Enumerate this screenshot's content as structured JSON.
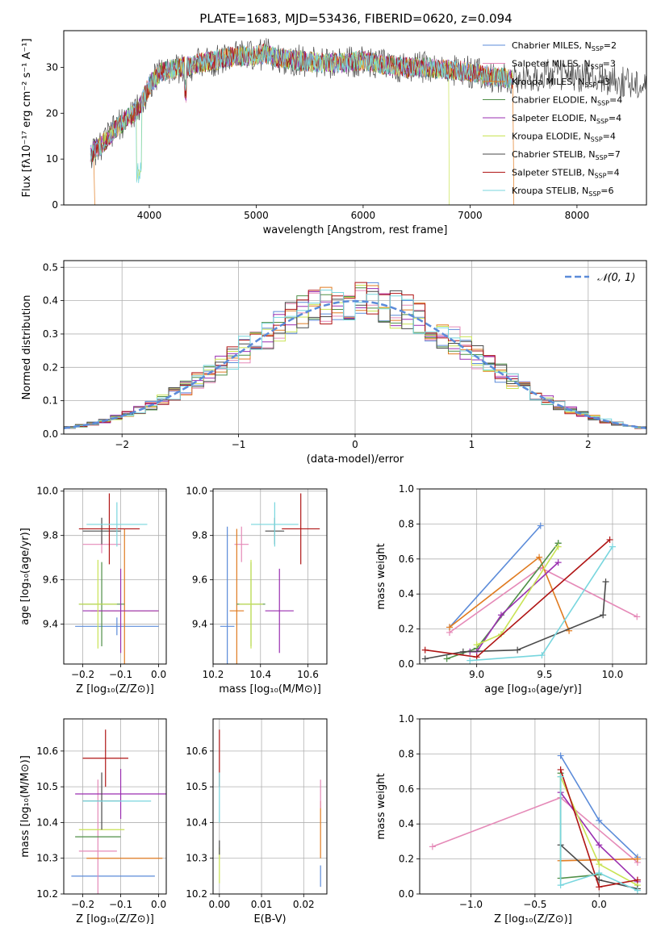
{
  "figure": {
    "title": "PLATE=1683, MJD=53436, FIBERID=0620, z=0.094"
  },
  "models": [
    {
      "name": "Chabrier MILES",
      "nssp": "2",
      "color": "#5b8bd9"
    },
    {
      "name": "Salpeter MILES",
      "nssp": "3",
      "color": "#e58ab8"
    },
    {
      "name": "Kroupa MILES",
      "nssp": "3",
      "color": "#e07b20"
    },
    {
      "name": "Chabrier ELODIE",
      "nssp": "4",
      "color": "#4f8f47"
    },
    {
      "name": "Salpeter ELODIE",
      "nssp": "4",
      "color": "#9a2fb0"
    },
    {
      "name": "Kroupa ELODIE",
      "nssp": "4",
      "color": "#c9e354"
    },
    {
      "name": "Chabrier STELIB",
      "nssp": "7",
      "color": "#4a4a4a"
    },
    {
      "name": "Salpeter STELIB",
      "nssp": "4",
      "color": "#b01515"
    },
    {
      "name": "Kroupa STELIB",
      "nssp": "6",
      "color": "#78d6de"
    }
  ],
  "chart_data": [
    {
      "id": "spectrum",
      "type": "line",
      "xlabel": "wavelength [Angstrom, rest frame]",
      "ylabel": "Flux [fλ10⁻¹⁷ erg cm⁻² s⁻¹ A⁻¹]",
      "xlim": [
        3200,
        8650
      ],
      "ylim": [
        0,
        38
      ],
      "xticks": [
        4000,
        5000,
        6000,
        7000,
        8000
      ],
      "yticks": [
        0,
        10,
        20,
        30
      ],
      "data_x": [
        3450,
        3550,
        3700,
        3800,
        3900,
        4000,
        4100,
        4300,
        4500,
        4700,
        4850,
        5000,
        5100,
        5200,
        5400,
        5600,
        5800,
        6000,
        6200,
        6400,
        6600,
        6800,
        7000,
        7200,
        7400,
        7600,
        7800,
        8000,
        8200,
        8400,
        8650
      ],
      "data_y": [
        11,
        13,
        17,
        19,
        21,
        26,
        29,
        30,
        31,
        32,
        32.5,
        32.5,
        33,
        32,
        31.5,
        31,
        31,
        31.5,
        30.5,
        30,
        30,
        29.5,
        29,
        28,
        27.5,
        28,
        28.5,
        28,
        27.5,
        27,
        26.5
      ],
      "model_end": 7400
    },
    {
      "id": "residuals",
      "type": "histogram",
      "xlabel": "(data-model)/error",
      "ylabel": "Normed distribution",
      "xlim": [
        -2.5,
        2.5
      ],
      "ylim": [
        0,
        0.52
      ],
      "xticks": [
        -2,
        -1,
        0,
        1,
        2
      ],
      "yticks": [
        0.0,
        0.1,
        0.2,
        0.3,
        0.4,
        0.5
      ],
      "bin_width": 0.1,
      "legend": "𝒩(0, 1)",
      "gaussian": {
        "mu": 0,
        "sigma": 1
      }
    },
    {
      "id": "z_age",
      "type": "errorbar",
      "xlabel": "Z [log₁₀(Z/Z⊙)]",
      "ylabel": "age  [log₁₀(age/yr)]",
      "xlim": [
        -0.25,
        0.02
      ],
      "ylim": [
        9.22,
        10.01
      ],
      "xticks": [
        -0.2,
        -0.1,
        0.0
      ],
      "yticks": [
        9.4,
        9.6,
        9.8,
        10.0
      ],
      "points": [
        {
          "x": -0.11,
          "xerr": 0.11,
          "y": 9.39,
          "yerr": 0.04,
          "c": 0
        },
        {
          "x": -0.15,
          "xerr": 0.05,
          "y": 9.76,
          "yerr": 0.04,
          "c": 1
        },
        {
          "x": -0.09,
          "xerr": 0.09,
          "y": 9.46,
          "yerr": 0.37,
          "c": 2
        },
        {
          "x": -0.15,
          "xerr": 0.06,
          "y": 9.49,
          "yerr": 0.19,
          "c": 3
        },
        {
          "x": -0.1,
          "xerr": 0.1,
          "y": 9.46,
          "yerr": 0.19,
          "c": 4
        },
        {
          "x": -0.16,
          "xerr": 0.05,
          "y": 9.49,
          "yerr": 0.2,
          "c": 5
        },
        {
          "x": -0.15,
          "xerr": 0.05,
          "y": 9.82,
          "yerr": 0.06,
          "c": 6
        },
        {
          "x": -0.13,
          "xerr": 0.08,
          "y": 9.83,
          "yerr": 0.16,
          "c": 7
        },
        {
          "x": -0.11,
          "xerr": 0.08,
          "y": 9.85,
          "yerr": 0.1,
          "c": 8
        }
      ]
    },
    {
      "id": "mass_age",
      "type": "errorbar",
      "xlabel": "mass [log₁₀(M/M⊙)]",
      "ylabel": "",
      "xlim": [
        10.2,
        10.68
      ],
      "ylim": [
        9.22,
        10.01
      ],
      "xticks": [
        10.2,
        10.4,
        10.6
      ],
      "yticks": [
        9.4,
        9.6,
        9.8,
        10.0
      ],
      "points": [
        {
          "x": 10.26,
          "xerr": 0.03,
          "y": 9.39,
          "yerr": 0.45,
          "c": 0
        },
        {
          "x": 10.32,
          "xerr": 0.03,
          "y": 9.76,
          "yerr": 0.08,
          "c": 1
        },
        {
          "x": 10.3,
          "xerr": 0.03,
          "y": 9.46,
          "yerr": 0.37,
          "c": 2
        },
        {
          "x": 10.36,
          "xerr": 0.06,
          "y": 9.49,
          "yerr": 0.19,
          "c": 3
        },
        {
          "x": 10.48,
          "xerr": 0.06,
          "y": 9.46,
          "yerr": 0.19,
          "c": 4
        },
        {
          "x": 10.36,
          "xerr": 0.05,
          "y": 9.49,
          "yerr": 0.2,
          "c": 5
        },
        {
          "x": 10.46,
          "xerr": 0.04,
          "y": 9.82,
          "yerr": 0.06,
          "c": 6
        },
        {
          "x": 10.57,
          "xerr": 0.08,
          "y": 9.83,
          "yerr": 0.16,
          "c": 7
        },
        {
          "x": 10.46,
          "xerr": 0.1,
          "y": 9.85,
          "yerr": 0.1,
          "c": 8
        }
      ]
    },
    {
      "id": "age_weight",
      "type": "line",
      "xlabel": "age  [log₁₀(age/yr)]",
      "ylabel": "mass weight",
      "xlim": [
        8.58,
        10.25
      ],
      "ylim": [
        0,
        1
      ],
      "xticks": [
        9.0,
        9.5,
        10.0
      ],
      "yticks": [
        0.0,
        0.2,
        0.4,
        0.6,
        0.8,
        1.0
      ],
      "series": [
        {
          "c": 0,
          "x": [
            8.8,
            9.47
          ],
          "y": [
            0.21,
            0.79
          ]
        },
        {
          "c": 1,
          "x": [
            8.8,
            9.47,
            10.18
          ],
          "y": [
            0.18,
            0.55,
            0.27
          ]
        },
        {
          "c": 2,
          "x": [
            8.8,
            9.46,
            9.68
          ],
          "y": [
            0.21,
            0.61,
            0.19
          ]
        },
        {
          "c": 3,
          "x": [
            8.78,
            9.0,
            9.6,
            9.6
          ],
          "y": [
            0.03,
            0.09,
            0.69,
            0.69
          ]
        },
        {
          "c": 4,
          "x": [
            8.95,
            9.0,
            9.18,
            9.6
          ],
          "y": [
            0.07,
            0.07,
            0.28,
            0.58
          ]
        },
        {
          "c": 5,
          "x": [
            9.0,
            9.18,
            9.6
          ],
          "y": [
            0.11,
            0.17,
            0.67
          ]
        },
        {
          "c": 6,
          "x": [
            8.62,
            8.9,
            9.3,
            9.93,
            9.95
          ],
          "y": [
            0.03,
            0.07,
            0.08,
            0.28,
            0.47
          ]
        },
        {
          "c": 7,
          "x": [
            8.62,
            9.0,
            9.98
          ],
          "y": [
            0.08,
            0.04,
            0.71
          ]
        },
        {
          "c": 8,
          "x": [
            8.95,
            9.48,
            10.0
          ],
          "y": [
            0.02,
            0.05,
            0.67
          ]
        }
      ]
    },
    {
      "id": "z_mass",
      "type": "errorbar",
      "xlabel": "Z [log₁₀(Z/Z⊙)]",
      "ylabel": "mass [log₁₀(M/M⊙)]",
      "xlim": [
        -0.25,
        0.02
      ],
      "ylim": [
        10.2,
        10.69
      ],
      "xticks": [
        -0.2,
        -0.1,
        0.0
      ],
      "yticks": [
        10.2,
        10.3,
        10.4,
        10.5,
        10.6
      ],
      "points": [
        {
          "x": -0.12,
          "xerr": 0.11,
          "y": 10.25,
          "yerr": 0.0,
          "c": 0
        },
        {
          "x": -0.16,
          "xerr": 0.05,
          "y": 10.32,
          "yerr": 0.2,
          "c": 1
        },
        {
          "x": -0.09,
          "xerr": 0.1,
          "y": 10.3,
          "yerr": 0.0,
          "c": 2
        },
        {
          "x": -0.16,
          "xerr": 0.06,
          "y": 10.36,
          "yerr": 0.0,
          "c": 3
        },
        {
          "x": -0.1,
          "xerr": 0.12,
          "y": 10.48,
          "yerr": 0.07,
          "c": 4
        },
        {
          "x": -0.15,
          "xerr": 0.06,
          "y": 10.38,
          "yerr": 0.0,
          "c": 5
        },
        {
          "x": -0.15,
          "xerr": 0.05,
          "y": 10.46,
          "yerr": 0.08,
          "c": 6
        },
        {
          "x": -0.14,
          "xerr": 0.06,
          "y": 10.58,
          "yerr": 0.08,
          "c": 7
        },
        {
          "x": -0.11,
          "xerr": 0.09,
          "y": 10.46,
          "yerr": 0.0,
          "c": 8
        }
      ]
    },
    {
      "id": "ebv_mass",
      "type": "errorbar",
      "xlabel": "E(B-V)",
      "ylabel": "",
      "xlim": [
        -0.0015,
        0.0255
      ],
      "ylim": [
        10.2,
        10.69
      ],
      "xticks": [
        0.0,
        0.01,
        0.02
      ],
      "yticks": [
        10.2,
        10.3,
        10.4,
        10.5,
        10.6
      ],
      "points": [
        {
          "x": 0.0,
          "xerr": 0.0,
          "y": 10.28,
          "yerr": 0.05,
          "c": 5
        },
        {
          "x": 0.0,
          "xerr": 0.0,
          "y": 10.58,
          "yerr": 0.08,
          "c": 7
        },
        {
          "x": 0.0,
          "xerr": 0.0,
          "y": 10.47,
          "yerr": 0.07,
          "c": 8
        },
        {
          "x": 0.0,
          "xerr": 0.0,
          "y": 10.33,
          "yerr": 0.02,
          "c": 6
        },
        {
          "x": 0.024,
          "xerr": 0.0,
          "y": 10.38,
          "yerr": 0.08,
          "c": 2
        },
        {
          "x": 0.024,
          "xerr": 0.0,
          "y": 10.48,
          "yerr": 0.04,
          "c": 1
        },
        {
          "x": 0.024,
          "xerr": 0.0,
          "y": 10.25,
          "yerr": 0.03,
          "c": 0
        }
      ]
    },
    {
      "id": "z_weight",
      "type": "line",
      "xlabel": "Z [log₁₀(Z/Z⊙)]",
      "ylabel": "mass weight",
      "xlim": [
        -1.4,
        0.37
      ],
      "ylim": [
        0,
        1
      ],
      "xticks": [
        -1.0,
        -0.5,
        0.0
      ],
      "yticks": [
        0.0,
        0.2,
        0.4,
        0.6,
        0.8,
        1.0
      ],
      "series": [
        {
          "c": 0,
          "x": [
            -0.3,
            0.0,
            0.3
          ],
          "y": [
            0.79,
            0.42,
            0.21
          ]
        },
        {
          "c": 1,
          "x": [
            -1.3,
            -0.3,
            0.3
          ],
          "y": [
            0.27,
            0.55,
            0.18
          ]
        },
        {
          "c": 2,
          "x": [
            -0.3,
            0.3
          ],
          "y": [
            0.19,
            0.2
          ]
        },
        {
          "c": 3,
          "x": [
            -0.3,
            -0.3,
            0.0
          ],
          "y": [
            0.69,
            0.09,
            0.11
          ]
        },
        {
          "c": 4,
          "x": [
            -0.3,
            0.0,
            0.3
          ],
          "y": [
            0.58,
            0.28,
            0.07
          ]
        },
        {
          "c": 5,
          "x": [
            -0.3,
            0.0,
            0.3
          ],
          "y": [
            0.67,
            0.17,
            0.05
          ]
        },
        {
          "c": 6,
          "x": [
            -0.3,
            0.0,
            0.3
          ],
          "y": [
            0.28,
            0.08,
            0.03
          ]
        },
        {
          "c": 7,
          "x": [
            -0.3,
            0.0,
            0.3
          ],
          "y": [
            0.71,
            0.04,
            0.08
          ]
        },
        {
          "c": 8,
          "x": [
            -0.3,
            -0.3,
            0.0,
            0.3
          ],
          "y": [
            0.67,
            0.05,
            0.12,
            0.02
          ]
        }
      ]
    }
  ]
}
